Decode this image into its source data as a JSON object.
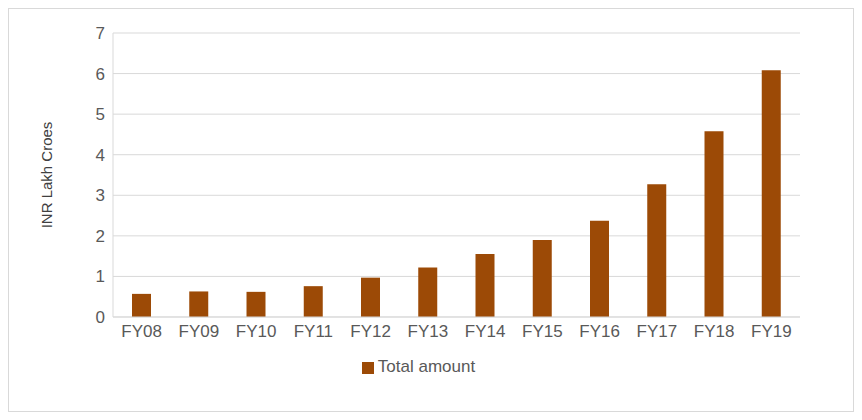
{
  "chart_data": {
    "type": "bar",
    "y_label": "INR Lakh Croes",
    "categories": [
      "FY08",
      "FY09",
      "FY10",
      "FY11",
      "FY12",
      "FY13",
      "FY14",
      "FY15",
      "FY16",
      "FY17",
      "FY18",
      "FY19"
    ],
    "series": [
      {
        "name": "Total amount",
        "color": "#9c4a06",
        "values": [
          0.57,
          0.63,
          0.62,
          0.76,
          0.97,
          1.22,
          1.55,
          1.9,
          2.37,
          3.27,
          4.58,
          6.08
        ]
      }
    ],
    "ylim": [
      0,
      7
    ],
    "yticks": [
      0,
      1,
      2,
      3,
      4,
      5,
      6,
      7
    ],
    "grid": true,
    "legend": "bottom"
  }
}
